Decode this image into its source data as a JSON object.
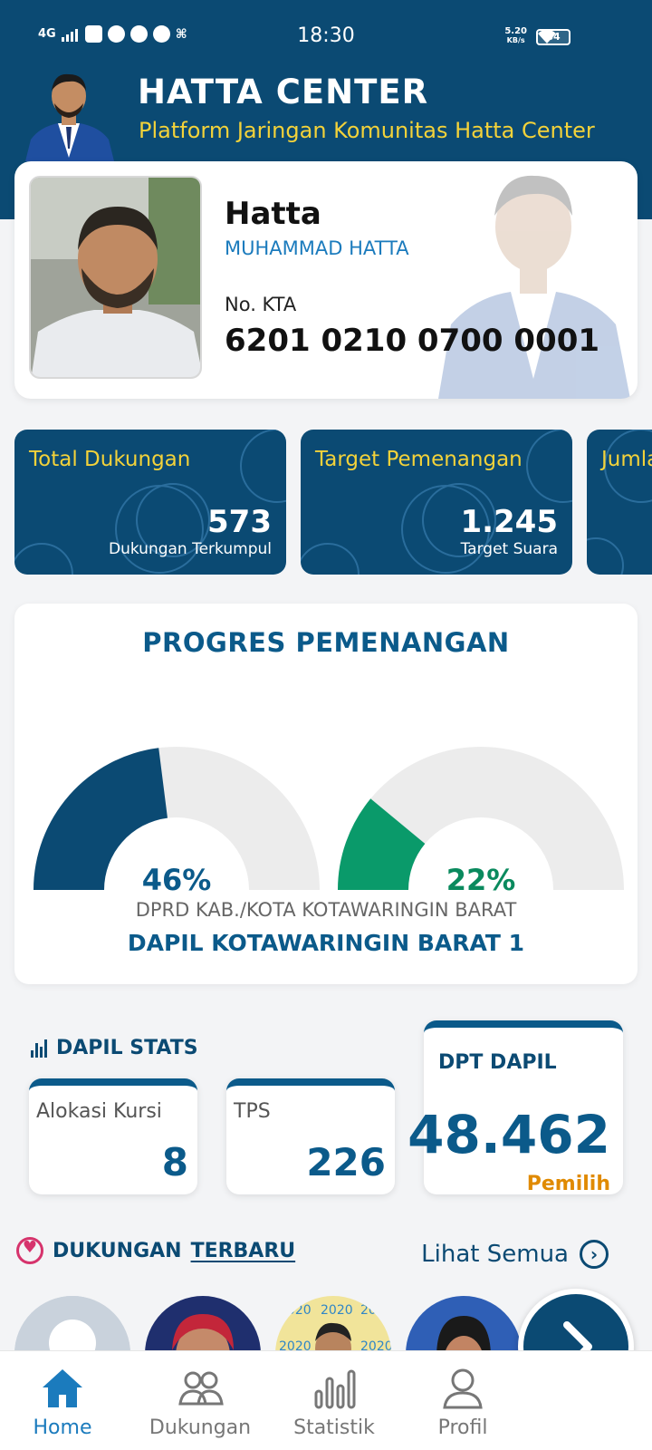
{
  "status_bar": {
    "network": "4G",
    "time": "18:30",
    "speed_value": "5.20",
    "speed_unit": "KB/s",
    "battery": "84"
  },
  "header": {
    "title": "HATTA CENTER",
    "subtitle": "Platform Jaringan Komunitas Hatta Center"
  },
  "profile": {
    "name": "Hatta",
    "full_name": "MUHAMMAD HATTA",
    "kta_label": "No. KTA",
    "kta_number": "6201 0210 0700 0001"
  },
  "stats": [
    {
      "label": "Total Dukungan",
      "value": "573",
      "caption": "Dukungan Terkumpul"
    },
    {
      "label": "Target Pemenangan",
      "value": "1.245",
      "caption": "Target Suara"
    },
    {
      "label": "Jumla",
      "value": "",
      "caption": ""
    }
  ],
  "progress": {
    "title": "PROGRES PEMENANGAN",
    "gauges": [
      {
        "percent_label": "46%",
        "value": 46,
        "color": "#0b4a73"
      },
      {
        "percent_label": "22%",
        "value": 22,
        "color": "#0a9a6a"
      }
    ],
    "dprd": "DPRD KAB./KOTA KOTAWARINGIN BARAT",
    "dapil": "DAPIL KOTAWARINGIN BARAT 1"
  },
  "dapil_stats": {
    "title": "DAPIL STATS",
    "alokasi_label": "Alokasi Kursi",
    "alokasi_value": "8",
    "tps_label": "TPS",
    "tps_value": "226",
    "dpt_label": "DPT DAPIL",
    "dpt_value": "48.462",
    "dpt_unit": "Pemilih"
  },
  "dukungan": {
    "title_part1": "DUKUNGAN",
    "title_part2": "TERBARU",
    "see_all": "Lihat Semua"
  },
  "nav": [
    {
      "label": "Home",
      "icon": "home-icon",
      "active": true
    },
    {
      "label": "Dukungan",
      "icon": "people-icon",
      "active": false
    },
    {
      "label": "Statistik",
      "icon": "bar-chart-icon",
      "active": false
    },
    {
      "label": "Profil",
      "icon": "user-icon",
      "active": false
    }
  ],
  "colors": {
    "primary": "#0b4a73",
    "accent_yellow": "#f3d23a",
    "accent_blue": "#1b7bbd",
    "green": "#0a9a6a",
    "orange": "#e08a00"
  }
}
